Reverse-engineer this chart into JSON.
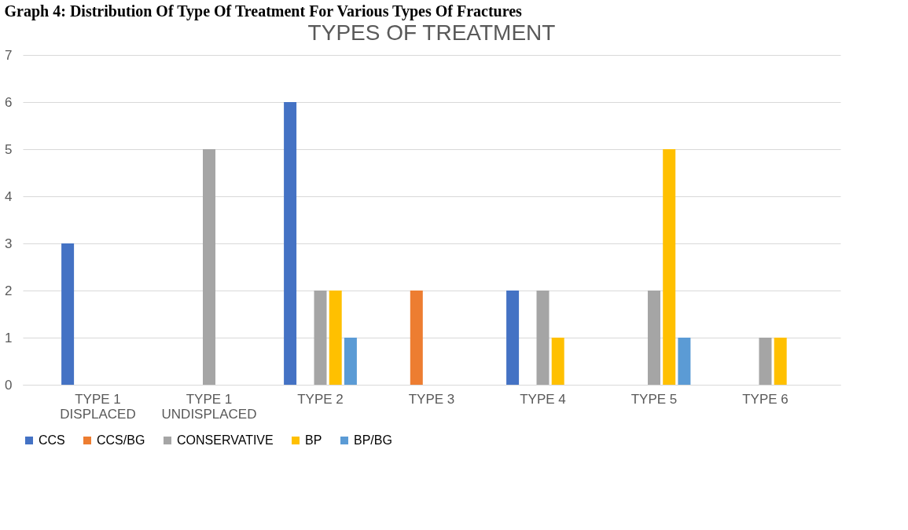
{
  "chart_data": {
    "type": "bar",
    "title": "Graph 4: Distribution Of Type Of Treatment For Various Types Of Fractures",
    "subtitle": "TYPES OF TREATMENT",
    "categories": [
      "TYPE 1 DISPLACED",
      "TYPE 1 UNDISPLACED",
      "TYPE 2",
      "TYPE 3",
      "TYPE 4",
      "TYPE 5",
      "TYPE 6"
    ],
    "series": [
      {
        "name": "CCS",
        "color": "#4472c4",
        "values": [
          3,
          0,
          6,
          0,
          2,
          0,
          0
        ]
      },
      {
        "name": "CCS/BG",
        "color": "#ed7d31",
        "values": [
          0,
          0,
          0,
          2,
          0,
          0,
          0
        ]
      },
      {
        "name": "CONSERVATIVE",
        "color": "#a5a5a5",
        "values": [
          0,
          5,
          2,
          0,
          2,
          2,
          1
        ]
      },
      {
        "name": "BP",
        "color": "#ffc000",
        "values": [
          0,
          0,
          2,
          0,
          1,
          5,
          1
        ]
      },
      {
        "name": "BP/BG",
        "color": "#5b9bd5",
        "values": [
          0,
          0,
          1,
          0,
          0,
          1,
          0
        ]
      }
    ],
    "ylim": [
      0,
      7
    ],
    "yticks": [
      0,
      1,
      2,
      3,
      4,
      5,
      6,
      7
    ],
    "grid": "y",
    "legend": "bottom"
  }
}
